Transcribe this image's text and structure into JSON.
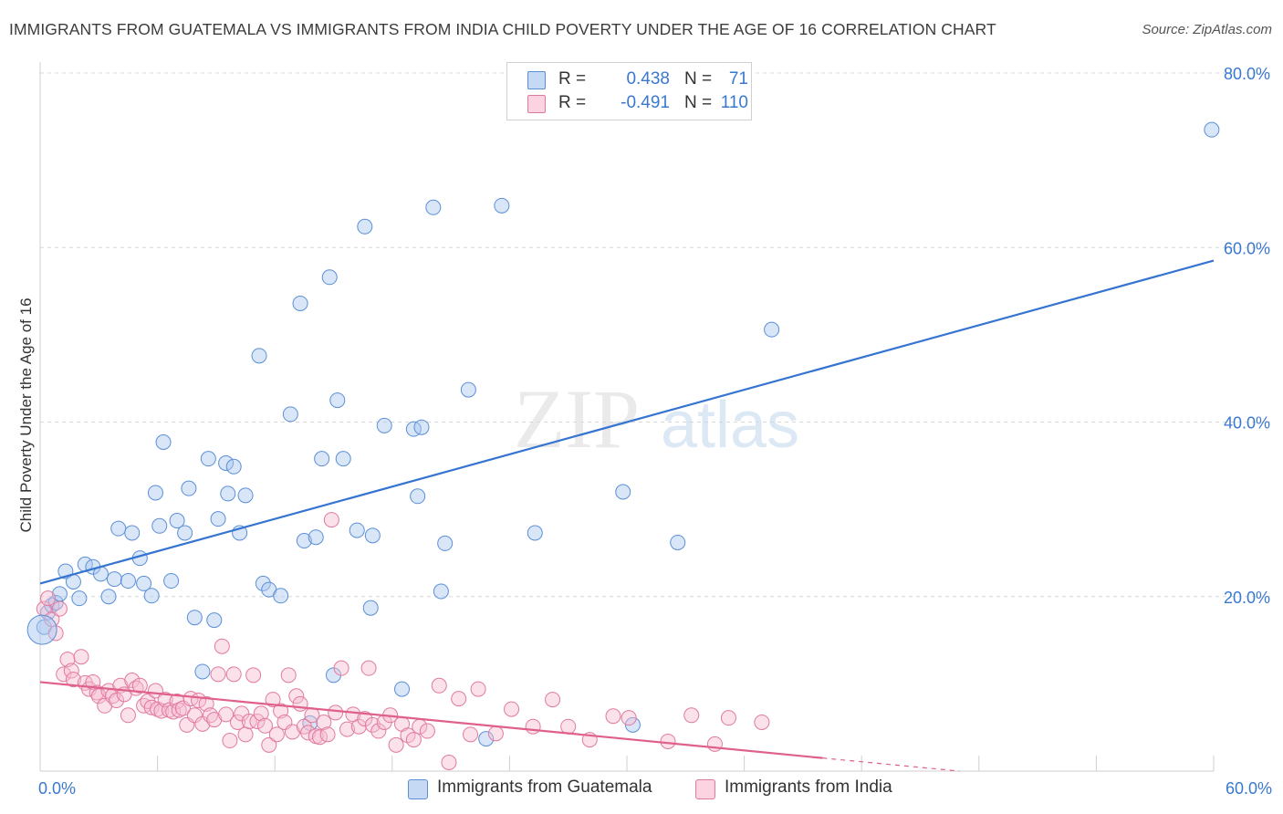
{
  "title": "IMMIGRANTS FROM GUATEMALA VS IMMIGRANTS FROM INDIA CHILD POVERTY UNDER THE AGE OF 16 CORRELATION CHART",
  "source": "Source: ZipAtlas.com",
  "watermark": {
    "zip": "ZIP",
    "atlas": "atlas"
  },
  "legend": {
    "rows": [
      {
        "r_label": "R =",
        "r_value": "0.438",
        "n_label": "N =",
        "n_value": "71",
        "color": "#a9c7f0",
        "border": "#5b8fd6"
      },
      {
        "r_label": "R =",
        "r_value": "-0.491",
        "n_label": "N =",
        "n_value": "110",
        "color": "#f7bcd0",
        "border": "#e07aa0"
      }
    ]
  },
  "bottom_legend": [
    {
      "label": "Immigrants from Guatemala",
      "color": "#a9c7f0",
      "border": "#5b8fd6"
    },
    {
      "label": "Immigrants from India",
      "color": "#f7bcd0",
      "border": "#e07aa0"
    }
  ],
  "chart_data": {
    "type": "scatter",
    "title": "IMMIGRANTS FROM GUATEMALA VS IMMIGRANTS FROM INDIA CHILD POVERTY UNDER THE AGE OF 16 CORRELATION CHART",
    "xlabel": "",
    "ylabel": "Child Poverty Under the Age of 16",
    "xlim": [
      0,
      60
    ],
    "ylim": [
      0,
      82
    ],
    "x_tick_labels": [
      {
        "value": 0,
        "label": "0.0%"
      },
      {
        "value": 60,
        "label": "60.0%"
      }
    ],
    "y_tick_labels": [
      {
        "value": 20,
        "label": "20.0%"
      },
      {
        "value": 40,
        "label": "40.0%"
      },
      {
        "value": 60,
        "label": "60.0%"
      },
      {
        "value": 80,
        "label": "80.0%"
      }
    ],
    "grid": "horizontal dashed",
    "legend_position": "top-center",
    "series": [
      {
        "name": "Immigrants from Guatemala",
        "color": "#5b8fd6",
        "fill": "#a9c7f0",
        "trend": {
          "x": [
            0,
            60
          ],
          "y": [
            21.5,
            58.5
          ],
          "color": "#3574d0"
        },
        "points": [
          [
            0.2,
            16.5
          ],
          [
            0.4,
            18.2
          ],
          [
            0.6,
            19.0
          ],
          [
            0.8,
            19.3
          ],
          [
            1.0,
            20.3
          ],
          [
            1.3,
            22.9
          ],
          [
            1.7,
            21.7
          ],
          [
            2.0,
            19.8
          ],
          [
            2.3,
            23.7
          ],
          [
            2.7,
            23.4
          ],
          [
            3.1,
            22.6
          ],
          [
            3.5,
            20.0
          ],
          [
            3.8,
            22.0
          ],
          [
            4.0,
            27.8
          ],
          [
            4.5,
            21.8
          ],
          [
            4.7,
            27.3
          ],
          [
            5.1,
            24.4
          ],
          [
            5.3,
            21.5
          ],
          [
            5.7,
            20.1
          ],
          [
            5.9,
            31.9
          ],
          [
            6.1,
            28.1
          ],
          [
            6.3,
            37.7
          ],
          [
            6.7,
            21.8
          ],
          [
            7.0,
            28.7
          ],
          [
            7.4,
            27.3
          ],
          [
            7.6,
            32.4
          ],
          [
            7.9,
            17.6
          ],
          [
            8.3,
            11.4
          ],
          [
            8.6,
            35.8
          ],
          [
            8.9,
            17.3
          ],
          [
            9.1,
            28.9
          ],
          [
            9.5,
            35.3
          ],
          [
            9.6,
            31.8
          ],
          [
            9.9,
            34.9
          ],
          [
            10.2,
            27.3
          ],
          [
            10.5,
            31.6
          ],
          [
            11.2,
            47.6
          ],
          [
            11.4,
            21.5
          ],
          [
            11.7,
            20.8
          ],
          [
            12.3,
            20.1
          ],
          [
            12.8,
            40.9
          ],
          [
            13.3,
            53.6
          ],
          [
            13.5,
            26.4
          ],
          [
            13.8,
            5.5
          ],
          [
            14.1,
            26.8
          ],
          [
            14.4,
            35.8
          ],
          [
            14.8,
            56.6
          ],
          [
            15.0,
            11.0
          ],
          [
            15.2,
            42.5
          ],
          [
            15.5,
            35.8
          ],
          [
            16.2,
            27.6
          ],
          [
            16.6,
            62.4
          ],
          [
            16.9,
            18.7
          ],
          [
            17.0,
            27.0
          ],
          [
            17.6,
            39.6
          ],
          [
            18.5,
            9.4
          ],
          [
            19.1,
            39.2
          ],
          [
            19.5,
            39.4
          ],
          [
            19.3,
            31.5
          ],
          [
            20.1,
            64.6
          ],
          [
            20.5,
            20.6
          ],
          [
            20.7,
            26.1
          ],
          [
            21.9,
            43.7
          ],
          [
            22.8,
            3.7
          ],
          [
            23.6,
            64.8
          ],
          [
            25.3,
            27.3
          ],
          [
            29.8,
            32.0
          ],
          [
            30.3,
            5.3
          ],
          [
            32.6,
            26.2
          ],
          [
            37.4,
            50.6
          ],
          [
            59.9,
            73.5
          ]
        ]
      },
      {
        "name": "Immigrants from India",
        "color": "#e07aa0",
        "fill": "#f7bcd0",
        "trend": {
          "x": [
            0,
            40
          ],
          "y": [
            10.2,
            1.5
          ],
          "dash_x": [
            40,
            47
          ],
          "dash_y": [
            1.5,
            0
          ],
          "color": "#e0608c"
        },
        "points": [
          [
            0.2,
            18.6
          ],
          [
            0.4,
            19.8
          ],
          [
            0.6,
            17.4
          ],
          [
            0.8,
            15.8
          ],
          [
            1.0,
            18.6
          ],
          [
            1.2,
            11.1
          ],
          [
            1.4,
            12.8
          ],
          [
            1.6,
            11.5
          ],
          [
            1.7,
            10.5
          ],
          [
            2.1,
            13.1
          ],
          [
            2.3,
            10.1
          ],
          [
            2.5,
            9.4
          ],
          [
            2.7,
            10.2
          ],
          [
            2.9,
            9.0
          ],
          [
            3.0,
            8.6
          ],
          [
            3.3,
            7.5
          ],
          [
            3.5,
            9.2
          ],
          [
            3.7,
            8.6
          ],
          [
            3.9,
            8.1
          ],
          [
            4.1,
            9.8
          ],
          [
            4.3,
            8.8
          ],
          [
            4.5,
            6.4
          ],
          [
            4.7,
            10.4
          ],
          [
            4.9,
            9.5
          ],
          [
            5.1,
            9.8
          ],
          [
            5.3,
            7.5
          ],
          [
            5.5,
            8.0
          ],
          [
            5.7,
            7.3
          ],
          [
            5.9,
            9.2
          ],
          [
            6.0,
            7.1
          ],
          [
            6.2,
            6.9
          ],
          [
            6.4,
            8.2
          ],
          [
            6.6,
            7.0
          ],
          [
            6.8,
            6.8
          ],
          [
            7.0,
            8.0
          ],
          [
            7.1,
            7.0
          ],
          [
            7.3,
            7.2
          ],
          [
            7.5,
            5.3
          ],
          [
            7.7,
            8.3
          ],
          [
            7.9,
            6.4
          ],
          [
            8.1,
            8.1
          ],
          [
            8.3,
            5.4
          ],
          [
            8.5,
            7.7
          ],
          [
            8.7,
            6.4
          ],
          [
            8.9,
            5.9
          ],
          [
            9.1,
            11.1
          ],
          [
            9.3,
            14.3
          ],
          [
            9.5,
            6.5
          ],
          [
            9.7,
            3.5
          ],
          [
            9.9,
            11.1
          ],
          [
            10.1,
            5.6
          ],
          [
            10.3,
            6.6
          ],
          [
            10.5,
            4.2
          ],
          [
            10.7,
            5.7
          ],
          [
            10.9,
            11.0
          ],
          [
            11.1,
            5.7
          ],
          [
            11.3,
            6.6
          ],
          [
            11.5,
            5.2
          ],
          [
            11.7,
            3.0
          ],
          [
            11.9,
            8.2
          ],
          [
            12.1,
            4.2
          ],
          [
            12.3,
            6.9
          ],
          [
            12.5,
            5.6
          ],
          [
            12.7,
            11.0
          ],
          [
            12.9,
            4.5
          ],
          [
            13.1,
            8.6
          ],
          [
            13.3,
            7.7
          ],
          [
            13.5,
            5.1
          ],
          [
            13.7,
            4.4
          ],
          [
            13.9,
            6.4
          ],
          [
            14.1,
            4.0
          ],
          [
            14.3,
            3.9
          ],
          [
            14.5,
            5.6
          ],
          [
            14.7,
            4.2
          ],
          [
            14.9,
            28.8
          ],
          [
            15.1,
            6.7
          ],
          [
            15.4,
            11.8
          ],
          [
            15.7,
            4.8
          ],
          [
            16.0,
            6.5
          ],
          [
            16.3,
            5.1
          ],
          [
            16.6,
            6.0
          ],
          [
            16.8,
            11.8
          ],
          [
            17.0,
            5.3
          ],
          [
            17.3,
            4.6
          ],
          [
            17.6,
            5.6
          ],
          [
            17.9,
            6.4
          ],
          [
            18.2,
            3.0
          ],
          [
            18.5,
            5.4
          ],
          [
            18.8,
            4.1
          ],
          [
            19.1,
            3.6
          ],
          [
            19.4,
            5.1
          ],
          [
            19.8,
            4.6
          ],
          [
            20.4,
            9.8
          ],
          [
            20.9,
            1.0
          ],
          [
            21.4,
            8.3
          ],
          [
            22.0,
            4.2
          ],
          [
            22.4,
            9.4
          ],
          [
            23.3,
            4.3
          ],
          [
            24.1,
            7.1
          ],
          [
            25.2,
            5.1
          ],
          [
            26.2,
            8.2
          ],
          [
            27.0,
            5.1
          ],
          [
            28.1,
            3.6
          ],
          [
            29.3,
            6.3
          ],
          [
            30.1,
            6.1
          ],
          [
            32.1,
            3.4
          ],
          [
            33.3,
            6.4
          ],
          [
            34.5,
            3.1
          ],
          [
            35.2,
            6.1
          ],
          [
            36.9,
            5.6
          ]
        ]
      }
    ]
  }
}
